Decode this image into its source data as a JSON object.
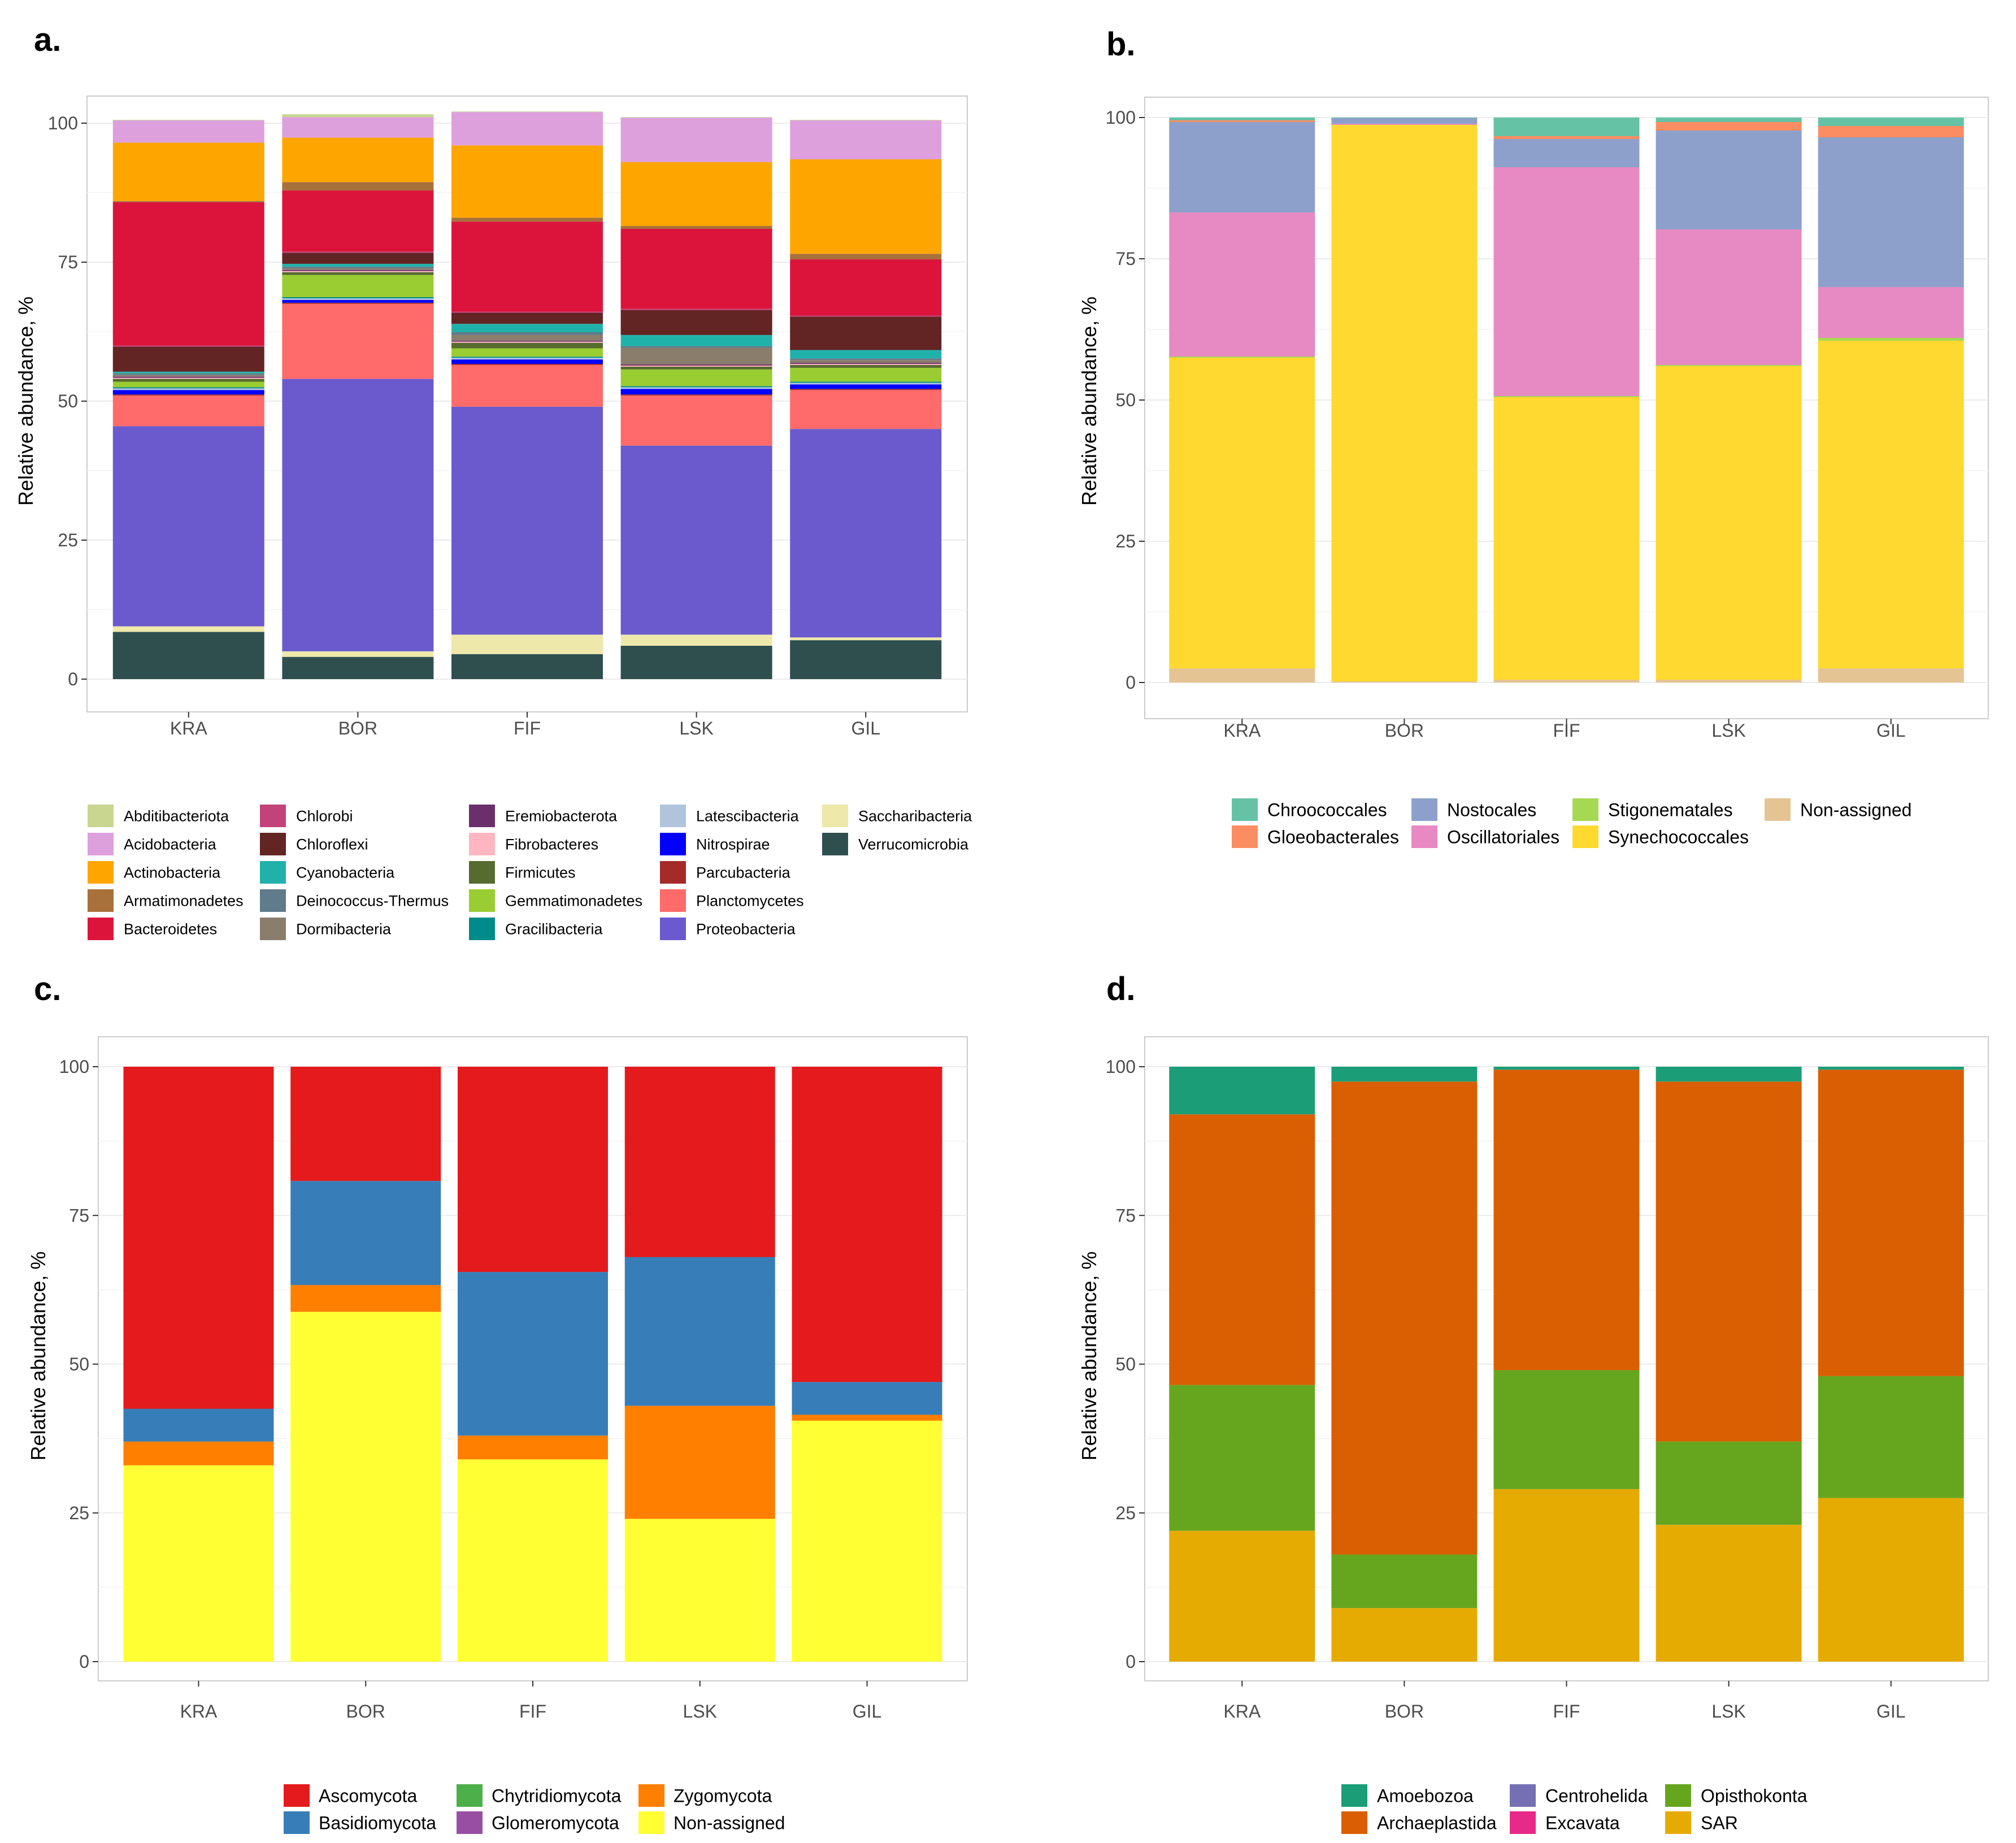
{
  "chart_data": [
    {
      "panel_label": "a.",
      "type": "bar",
      "stacked": true,
      "ylabel": "Relative abundance, %",
      "xlabel": "",
      "ylim": [
        0,
        100
      ],
      "yticks": [
        0,
        25,
        50,
        75,
        100
      ],
      "ytick_labels": [
        "0",
        "25",
        "50",
        "75",
        "100"
      ],
      "grid": true,
      "legend_position": "bottom",
      "categories": [
        "KRA",
        "BOR",
        "FIF",
        "LSK",
        "GIL"
      ],
      "series": [
        {
          "name": "Verrucomicrobia",
          "color": "#2f4f4f",
          "values": [
            8.5,
            4.0,
            4.5,
            6.0,
            7.0
          ]
        },
        {
          "name": "Saccharibacteria",
          "color": "#eee8aa",
          "values": [
            1.0,
            1.0,
            3.5,
            2.0,
            0.5
          ]
        },
        {
          "name": "Proteobacteria",
          "color": "#6a5acd",
          "values": [
            36.0,
            49.0,
            41.0,
            34.0,
            37.5
          ]
        },
        {
          "name": "Planctomycetes",
          "color": "#ff6a6a",
          "values": [
            5.5,
            13.5,
            7.5,
            9.0,
            7.0
          ]
        },
        {
          "name": "Parcubacteria",
          "color": "#a52a2a",
          "values": [
            0.2,
            0.2,
            0.2,
            0.2,
            0.2
          ]
        },
        {
          "name": "Nitrospirae",
          "color": "#0000ff",
          "values": [
            0.8,
            0.5,
            0.8,
            1.0,
            0.8
          ]
        },
        {
          "name": "Latescibacteria",
          "color": "#b0c4de",
          "values": [
            0.3,
            0.3,
            0.3,
            0.3,
            0.3
          ]
        },
        {
          "name": "Gracilibacteria",
          "color": "#008b8b",
          "values": [
            0.2,
            0.2,
            0.2,
            0.2,
            0.2
          ]
        },
        {
          "name": "Gemmatimonadetes",
          "color": "#9acd32",
          "values": [
            1.0,
            4.0,
            1.5,
            3.0,
            2.5
          ]
        },
        {
          "name": "Firmicutes",
          "color": "#556b2f",
          "values": [
            0.5,
            0.5,
            1.0,
            0.5,
            0.5
          ]
        },
        {
          "name": "Fibrobacteres",
          "color": "#ffb6c1",
          "values": [
            0.2,
            0.2,
            0.2,
            0.2,
            0.2
          ]
        },
        {
          "name": "Eremiobacterota",
          "color": "#6b2f6b",
          "values": [
            0.2,
            0.2,
            0.2,
            0.2,
            0.2
          ]
        },
        {
          "name": "Dormibacteria",
          "color": "#8b7d6b",
          "values": [
            0.3,
            0.3,
            1.0,
            3.0,
            0.5
          ]
        },
        {
          "name": "Deinococcus-Thermus",
          "color": "#607b8b",
          "values": [
            0.3,
            0.3,
            0.5,
            0.3,
            0.3
          ]
        },
        {
          "name": "Cyanobacteria",
          "color": "#20b2aa",
          "values": [
            0.3,
            0.5,
            1.5,
            2.0,
            1.5
          ]
        },
        {
          "name": "Chloroflexi",
          "color": "#632424",
          "values": [
            4.5,
            2.0,
            2.0,
            4.5,
            6.0
          ]
        },
        {
          "name": "Chlorobi",
          "color": "#c4427a",
          "values": [
            0.2,
            0.2,
            0.2,
            0.2,
            0.2
          ]
        },
        {
          "name": "Bacteroidetes",
          "color": "#dc143c",
          "values": [
            25.8,
            11.0,
            16.2,
            14.4,
            10.1
          ]
        },
        {
          "name": "Armatimonadetes",
          "color": "#a8703a",
          "values": [
            0.2,
            1.5,
            0.7,
            0.5,
            1.0
          ]
        },
        {
          "name": "Actinobacteria",
          "color": "#ffa500",
          "values": [
            10.5,
            8.0,
            13.0,
            11.5,
            17.0
          ]
        },
        {
          "name": "Acidobacteria",
          "color": "#dda0dd",
          "values": [
            4.0,
            3.7,
            6.0,
            8.0,
            7.0
          ]
        },
        {
          "name": "Abditibacteriota",
          "color": "#c8d68f",
          "values": [
            0.1,
            0.5,
            0.1,
            0.1,
            0.1
          ]
        }
      ],
      "legend": [
        {
          "name": "Abditibacteriota",
          "color": "#c8d68f"
        },
        {
          "name": "Acidobacteria",
          "color": "#dda0dd"
        },
        {
          "name": "Actinobacteria",
          "color": "#ffa500"
        },
        {
          "name": "Armatimonadetes",
          "color": "#a8703a"
        },
        {
          "name": "Bacteroidetes",
          "color": "#dc143c"
        },
        {
          "name": "Chlorobi",
          "color": "#c4427a"
        },
        {
          "name": "Chloroflexi",
          "color": "#632424"
        },
        {
          "name": "Cyanobacteria",
          "color": "#20b2aa"
        },
        {
          "name": "Deinococcus-Thermus",
          "color": "#607b8b"
        },
        {
          "name": "Dormibacteria",
          "color": "#8b7d6b"
        },
        {
          "name": "Eremiobacterota",
          "color": "#6b2f6b"
        },
        {
          "name": "Fibrobacteres",
          "color": "#ffb6c1"
        },
        {
          "name": "Firmicutes",
          "color": "#556b2f"
        },
        {
          "name": "Gemmatimonadetes",
          "color": "#9acd32"
        },
        {
          "name": "Gracilibacteria",
          "color": "#008b8b"
        },
        {
          "name": "Latescibacteria",
          "color": "#b0c4de"
        },
        {
          "name": "Nitrospirae",
          "color": "#0000ff"
        },
        {
          "name": "Parcubacteria",
          "color": "#a52a2a"
        },
        {
          "name": "Planctomycetes",
          "color": "#ff6a6a"
        },
        {
          "name": "Proteobacteria",
          "color": "#6a5acd"
        },
        {
          "name": "Saccharibacteria",
          "color": "#eee8aa"
        },
        {
          "name": "Verrucomicrobia",
          "color": "#2f4f4f"
        }
      ]
    },
    {
      "panel_label": "b.",
      "type": "bar",
      "stacked": true,
      "ylabel": "Relative abundance, %",
      "xlabel": "",
      "ylim": [
        0,
        100
      ],
      "yticks": [
        0,
        25,
        50,
        75,
        100
      ],
      "ytick_labels": [
        "0",
        "25",
        "50",
        "75",
        "100"
      ],
      "grid": true,
      "legend_position": "bottom",
      "categories": [
        "KRA",
        "BOR",
        "FIF",
        "LSK",
        "GIL"
      ],
      "series": [
        {
          "name": "Non-assigned",
          "color": "#e5c494",
          "values": [
            2.5,
            0.2,
            0.5,
            0.5,
            2.5
          ]
        },
        {
          "name": "Synechococcales",
          "color": "#ffd92f",
          "values": [
            55.0,
            98.5,
            50.0,
            55.5,
            58.0
          ]
        },
        {
          "name": "Stigonematales",
          "color": "#a6d854",
          "values": [
            0.2,
            0.0,
            0.2,
            0.2,
            0.5
          ]
        },
        {
          "name": "Oscillatoriales",
          "color": "#e78ac3",
          "values": [
            25.5,
            0.2,
            40.5,
            24.0,
            9.0
          ]
        },
        {
          "name": "Nostocales",
          "color": "#8da0cb",
          "values": [
            16.0,
            1.0,
            5.0,
            17.5,
            26.5
          ]
        },
        {
          "name": "Gloeobacterales",
          "color": "#fc8d62",
          "values": [
            0.3,
            0.0,
            0.5,
            1.5,
            2.0
          ]
        },
        {
          "name": "Chroococcales",
          "color": "#66c2a5",
          "values": [
            0.5,
            0.1,
            3.3,
            0.8,
            1.5
          ]
        }
      ],
      "legend": [
        {
          "name": "Chroococcales",
          "color": "#66c2a5"
        },
        {
          "name": "Gloeobacterales",
          "color": "#fc8d62"
        },
        {
          "name": "Nostocales",
          "color": "#8da0cb"
        },
        {
          "name": "Oscillatoriales",
          "color": "#e78ac3"
        },
        {
          "name": "Stigonematales",
          "color": "#a6d854"
        },
        {
          "name": "Synechococcales",
          "color": "#ffd92f"
        },
        {
          "name": "Non-assigned",
          "color": "#e5c494"
        }
      ]
    },
    {
      "panel_label": "c.",
      "type": "bar",
      "stacked": true,
      "ylabel": "Relative abundance, %",
      "xlabel": "",
      "ylim": [
        0,
        100
      ],
      "yticks": [
        0,
        25,
        50,
        75,
        100
      ],
      "ytick_labels": [
        "0",
        "25",
        "50",
        "75",
        "100"
      ],
      "grid": true,
      "legend_position": "bottom",
      "categories": [
        "KRA",
        "BOR",
        "FIF",
        "LSK",
        "GIL"
      ],
      "series": [
        {
          "name": "Non-assigned",
          "color": "#ffff33",
          "values": [
            33.0,
            58.8,
            34.0,
            24.0,
            40.5
          ]
        },
        {
          "name": "Zygomycota",
          "color": "#ff7f00",
          "values": [
            4.0,
            4.5,
            4.0,
            19.0,
            1.0
          ]
        },
        {
          "name": "Glomeromycota",
          "color": "#984ea3",
          "values": [
            0.0,
            0.0,
            0.0,
            0.0,
            0.0
          ]
        },
        {
          "name": "Chytridiomycota",
          "color": "#4daf4a",
          "values": [
            0.0,
            0.0,
            0.0,
            0.0,
            0.0
          ]
        },
        {
          "name": "Basidiomycota",
          "color": "#377eb8",
          "values": [
            5.5,
            17.5,
            27.5,
            25.0,
            5.5
          ]
        },
        {
          "name": "Ascomycota",
          "color": "#e41a1c",
          "values": [
            57.5,
            19.2,
            34.5,
            32.0,
            53.0
          ]
        }
      ],
      "legend": [
        {
          "name": "Ascomycota",
          "color": "#e41a1c"
        },
        {
          "name": "Basidiomycota",
          "color": "#377eb8"
        },
        {
          "name": "Chytridiomycota",
          "color": "#4daf4a"
        },
        {
          "name": "Glomeromycota",
          "color": "#984ea3"
        },
        {
          "name": "Zygomycota",
          "color": "#ff7f00"
        },
        {
          "name": "Non-assigned",
          "color": "#ffff33"
        }
      ]
    },
    {
      "panel_label": "d.",
      "type": "bar",
      "stacked": true,
      "ylabel": "Relative abundance, %",
      "xlabel": "",
      "ylim": [
        0,
        100
      ],
      "yticks": [
        0,
        25,
        50,
        75,
        100
      ],
      "ytick_labels": [
        "0",
        "25",
        "50",
        "75",
        "100"
      ],
      "grid": true,
      "legend_position": "bottom",
      "categories": [
        "KRA",
        "BOR",
        "FIF",
        "LSK",
        "GIL"
      ],
      "series": [
        {
          "name": "SAR",
          "color": "#e6ab02",
          "values": [
            22.0,
            9.0,
            29.0,
            23.0,
            27.5
          ]
        },
        {
          "name": "Opisthokonta",
          "color": "#66a61e",
          "values": [
            24.5,
            9.0,
            20.0,
            14.0,
            20.5
          ]
        },
        {
          "name": "Excavata",
          "color": "#e7298a",
          "values": [
            0.0,
            0.0,
            0.0,
            0.0,
            0.0
          ]
        },
        {
          "name": "Centrohelida",
          "color": "#7570b3",
          "values": [
            0.0,
            0.0,
            0.0,
            0.0,
            0.0
          ]
        },
        {
          "name": "Archaeplastida",
          "color": "#d95f02",
          "values": [
            45.5,
            79.5,
            50.5,
            60.5,
            51.5
          ]
        },
        {
          "name": "Amoebozoa",
          "color": "#1b9e77",
          "values": [
            8.0,
            2.5,
            0.5,
            2.5,
            0.5
          ]
        }
      ],
      "legend": [
        {
          "name": "Amoebozoa",
          "color": "#1b9e77"
        },
        {
          "name": "Archaeplastida",
          "color": "#d95f02"
        },
        {
          "name": "Centrohelida",
          "color": "#7570b3"
        },
        {
          "name": "Excavata",
          "color": "#e7298a"
        },
        {
          "name": "Opisthokonta",
          "color": "#66a61e"
        },
        {
          "name": "SAR",
          "color": "#e6ab02"
        }
      ]
    }
  ]
}
